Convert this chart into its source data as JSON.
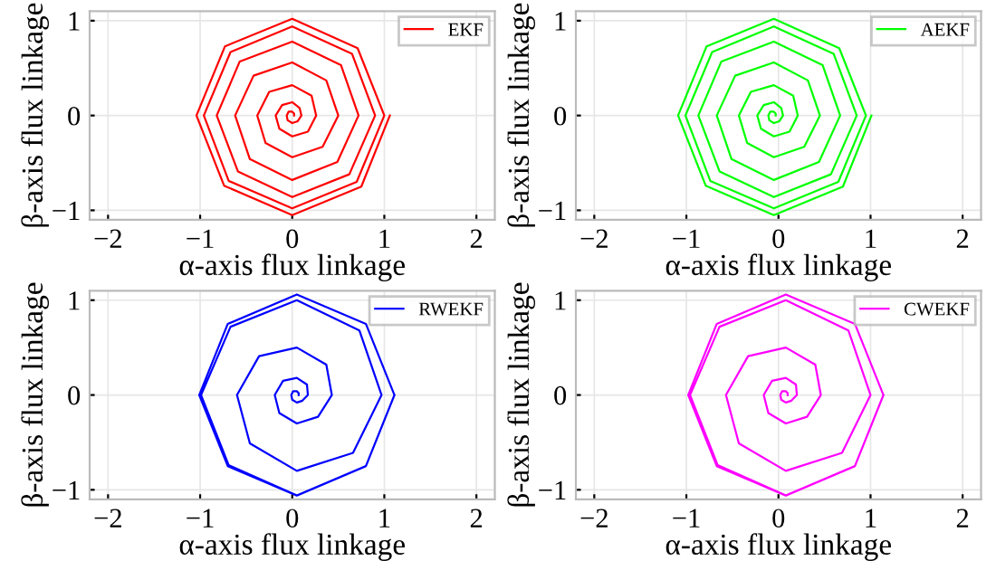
{
  "chart_data": [
    {
      "type": "line",
      "xlabel": "α-axis flux linkage",
      "ylabel": "β-axis flux linkage",
      "xlim": [
        -2.2,
        2.2
      ],
      "ylim": [
        -1.1,
        1.1
      ],
      "xticks": [
        -2,
        -1,
        0,
        1,
        2
      ],
      "yticks": [
        -1,
        0,
        1
      ],
      "grid": true,
      "legend": "top right",
      "x": [
        0.02,
        0.02,
        0,
        -0.04,
        -0.06,
        -0.05,
        0,
        0.06,
        0.1,
        0.08,
        0,
        -0.11,
        -0.18,
        -0.14,
        0,
        0.17,
        0.26,
        0.21,
        0,
        -0.25,
        -0.38,
        -0.29,
        0,
        0.33,
        0.5,
        0.37,
        0,
        -0.42,
        -0.62,
        -0.46,
        0,
        0.49,
        0.72,
        0.53,
        0,
        -0.57,
        -0.82,
        -0.59,
        0,
        0.62,
        0.9,
        0.65,
        0,
        -0.67,
        -0.96,
        -0.69,
        0,
        0.7,
        1.0,
        0.71,
        0,
        -0.73,
        -1.04,
        -0.74,
        0,
        0.75,
        1.06
      ],
      "series": [
        {
          "name": "EKF",
          "color": "#ff0000",
          "values": [
            0,
            0.02,
            0.04,
            0.04,
            0,
            -0.05,
            -0.08,
            -0.06,
            0,
            0.08,
            0.14,
            0.11,
            0,
            -0.14,
            -0.22,
            -0.17,
            0,
            0.21,
            0.32,
            0.25,
            0,
            -0.29,
            -0.44,
            -0.33,
            0,
            0.37,
            0.56,
            0.42,
            0,
            -0.46,
            -0.68,
            -0.49,
            0,
            0.53,
            0.78,
            0.57,
            0,
            -0.59,
            -0.86,
            -0.62,
            0,
            0.65,
            0.94,
            0.67,
            0,
            -0.69,
            -0.98,
            -0.7,
            0,
            0.71,
            1.02,
            0.73,
            0,
            -0.74,
            -1.05,
            -0.75,
            0
          ]
        }
      ]
    },
    {
      "type": "line",
      "xlabel": "α-axis flux linkage",
      "ylabel": "β-axis flux linkage",
      "xlim": [
        -2.2,
        2.2
      ],
      "ylim": [
        -1.1,
        1.1
      ],
      "xticks": [
        -2,
        -1,
        0,
        1,
        2
      ],
      "yticks": [
        -1,
        0,
        1
      ],
      "grid": true,
      "legend": "top right",
      "x": [
        -0.03,
        -0.03,
        -0.05,
        -0.09,
        -0.11,
        -0.1,
        -0.05,
        0.01,
        0.05,
        0.03,
        -0.05,
        -0.16,
        -0.23,
        -0.19,
        -0.05,
        0.12,
        0.21,
        0.16,
        -0.05,
        -0.3,
        -0.43,
        -0.34,
        -0.05,
        0.28,
        0.45,
        0.32,
        -0.05,
        -0.47,
        -0.67,
        -0.51,
        -0.05,
        0.44,
        0.67,
        0.48,
        -0.05,
        -0.62,
        -0.87,
        -0.64,
        -0.05,
        0.57,
        0.85,
        0.6,
        -0.05,
        -0.72,
        -1.01,
        -0.74,
        -0.05,
        0.65,
        0.95,
        0.66,
        -0.05,
        -0.78,
        -1.09,
        -0.79,
        -0.05,
        0.7,
        1.01
      ],
      "series": [
        {
          "name": "AEKF",
          "color": "#00ff00",
          "values": [
            0,
            0.02,
            0.04,
            0.04,
            0,
            -0.05,
            -0.08,
            -0.06,
            0,
            0.08,
            0.14,
            0.11,
            0,
            -0.14,
            -0.22,
            -0.17,
            0,
            0.21,
            0.32,
            0.25,
            0,
            -0.29,
            -0.44,
            -0.33,
            0,
            0.37,
            0.56,
            0.42,
            0,
            -0.46,
            -0.68,
            -0.49,
            0,
            0.53,
            0.78,
            0.57,
            0,
            -0.59,
            -0.86,
            -0.62,
            0,
            0.65,
            0.94,
            0.67,
            0,
            -0.69,
            -0.98,
            -0.7,
            0,
            0.71,
            1.02,
            0.73,
            0,
            -0.74,
            -1.05,
            -0.75,
            0
          ]
        }
      ]
    },
    {
      "type": "line",
      "xlabel": "α-axis flux linkage",
      "ylabel": "β-axis flux linkage",
      "xlim": [
        -2.2,
        2.2
      ],
      "ylim": [
        -1.1,
        1.1
      ],
      "xticks": [
        -2,
        -1,
        0,
        1,
        2
      ],
      "yticks": [
        -1,
        0,
        1
      ],
      "grid": true,
      "legend": "top right",
      "x": [
        0.07,
        0.07,
        0.05,
        0.01,
        -0.01,
        0,
        0.05,
        0.11,
        0.17,
        0.16,
        0.05,
        -0.1,
        -0.19,
        -0.14,
        0.05,
        0.28,
        0.43,
        0.37,
        0.05,
        -0.36,
        -0.6,
        -0.46,
        0.05,
        0.66,
        0.97,
        0.73,
        0.05,
        -0.67,
        -0.99,
        -0.69,
        0.05,
        0.8,
        1.11,
        0.8,
        0.05,
        -0.7,
        -1.01,
        -0.7,
        0.05,
        0.8,
        1.11
      ],
      "series": [
        {
          "name": "RWEKF",
          "color": "#0000ff",
          "values": [
            0,
            0.02,
            0.04,
            0.04,
            0,
            -0.05,
            -0.08,
            -0.06,
            0,
            0.11,
            0.18,
            0.15,
            0,
            -0.19,
            -0.3,
            -0.23,
            0,
            0.32,
            0.5,
            0.41,
            0,
            -0.51,
            -0.8,
            -0.61,
            0,
            0.68,
            1.0,
            0.72,
            0,
            -0.74,
            -1.06,
            -0.75,
            0,
            0.75,
            1.06,
            0.75,
            0,
            -0.75,
            -1.06,
            -0.75,
            0
          ]
        }
      ]
    },
    {
      "type": "line",
      "xlabel": "α-axis flux linkage",
      "ylabel": "β-axis flux linkage",
      "xlim": [
        -2.2,
        2.2
      ],
      "ylim": [
        -1.1,
        1.1
      ],
      "xticks": [
        -2,
        -1,
        0,
        1,
        2
      ],
      "yticks": [
        -1,
        0,
        1
      ],
      "grid": true,
      "legend": "top right",
      "x": [
        0.1,
        0.1,
        0.08,
        0.04,
        0.02,
        0.03,
        0.08,
        0.14,
        0.2,
        0.19,
        0.08,
        -0.07,
        -0.16,
        -0.11,
        0.08,
        0.31,
        0.46,
        0.4,
        0.08,
        -0.33,
        -0.57,
        -0.43,
        0.08,
        0.69,
        1.0,
        0.76,
        0.08,
        -0.64,
        -0.96,
        -0.66,
        0.08,
        0.83,
        1.14,
        0.83,
        0.08,
        -0.67,
        -0.98,
        -0.67,
        0.08,
        0.83,
        1.14
      ],
      "series": [
        {
          "name": "CWEKF",
          "color": "#ff00ff",
          "values": [
            0,
            0.02,
            0.04,
            0.04,
            0,
            -0.05,
            -0.08,
            -0.06,
            0,
            0.11,
            0.18,
            0.15,
            0,
            -0.19,
            -0.3,
            -0.23,
            0,
            0.32,
            0.5,
            0.41,
            0,
            -0.51,
            -0.8,
            -0.61,
            0,
            0.68,
            1.0,
            0.72,
            0,
            -0.74,
            -1.06,
            -0.75,
            0,
            0.75,
            1.06,
            0.75,
            0,
            -0.75,
            -1.06,
            -0.75,
            0
          ]
        }
      ]
    }
  ]
}
